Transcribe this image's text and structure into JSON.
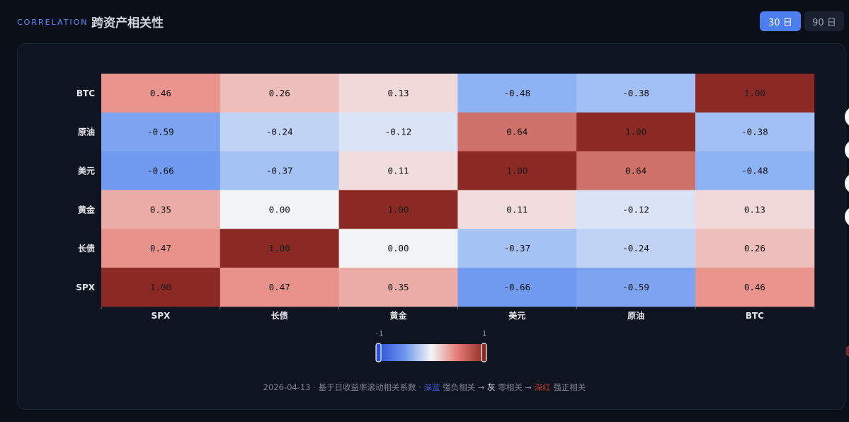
{
  "header": {
    "eyebrow": "CORRELATION",
    "title": "跨资产相关性",
    "buttons": [
      {
        "label": "30 日",
        "active": true
      },
      {
        "label": "90 日",
        "active": false
      }
    ]
  },
  "colors": {
    "negative": "#3b6fe6",
    "neutral": "#f3f4f6",
    "positive": "#8b2a24",
    "accent": "#4d7ef0"
  },
  "chart_data": {
    "type": "heatmap",
    "x_labels": [
      "SPX",
      "长债",
      "黄金",
      "美元",
      "原油",
      "BTC"
    ],
    "y_labels": [
      "BTC",
      "原油",
      "美元",
      "黄金",
      "长债",
      "SPX"
    ],
    "values": [
      [
        0.46,
        0.26,
        0.13,
        -0.48,
        -0.38,
        1.0
      ],
      [
        -0.59,
        -0.24,
        -0.12,
        0.64,
        1.0,
        -0.38
      ],
      [
        -0.66,
        -0.37,
        0.11,
        1.0,
        0.64,
        -0.48
      ],
      [
        0.35,
        0.0,
        1.0,
        0.11,
        -0.12,
        0.13
      ],
      [
        0.47,
        1.0,
        0.0,
        -0.37,
        -0.24,
        0.26
      ],
      [
        1.0,
        0.47,
        0.35,
        -0.66,
        -0.59,
        0.46
      ]
    ],
    "color_range": [
      -1,
      1
    ],
    "colorbar_labels": [
      "-1",
      "1"
    ]
  },
  "footnote": {
    "prefix": "2026-04-13 · 基于日收益率滚动相关系数 · ",
    "blue": "深蓝",
    "mid1": " 强负相关 → ",
    "gray": "灰",
    "mid2": " 零相关 → ",
    "red": "深红",
    "suffix": " 强正相关"
  }
}
